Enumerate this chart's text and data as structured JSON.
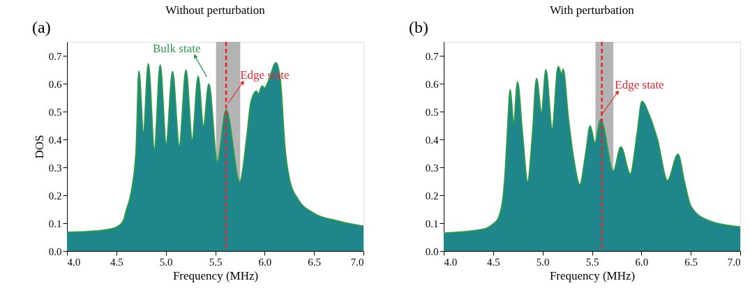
{
  "chart_data": [
    {
      "type": "area",
      "title": "Without perturbation",
      "xlabel": "Frequency (MHz)",
      "ylabel": "DOS",
      "x": [
        4.0,
        4.3,
        4.4,
        4.5,
        4.57,
        4.6,
        4.65,
        4.7,
        4.728,
        4.773,
        4.823,
        4.884,
        4.943,
        5.004,
        5.068,
        5.136,
        5.204,
        5.267,
        5.327,
        5.381,
        5.435,
        5.521,
        5.61,
        5.748,
        5.82,
        5.86,
        5.917,
        5.935,
        5.975,
        6.0,
        6.036,
        6.115,
        6.16,
        6.205,
        6.25,
        6.34,
        6.5,
        6.73,
        7.0
      ],
      "series": [
        {
          "color": "#1f878c",
          "values": [
            0.067,
            0.072,
            0.076,
            0.085,
            0.108,
            0.146,
            0.21,
            0.365,
            0.645,
            0.425,
            0.671,
            0.365,
            0.667,
            0.384,
            0.643,
            0.376,
            0.649,
            0.399,
            0.626,
            0.448,
            0.599,
            0.32,
            0.505,
            0.248,
            0.41,
            0.531,
            0.573,
            0.562,
            0.592,
            0.584,
            0.607,
            0.675,
            0.607,
            0.373,
            0.259,
            0.184,
            0.135,
            0.108,
            0.089
          ]
        }
      ],
      "xlim": [
        4.0,
        7.0
      ],
      "ylim": [
        0,
        0.75
      ],
      "xticks": [
        {
          "value": 4.0,
          "label": "4.0"
        },
        4.5,
        {
          "value": 5.0,
          "label": "5.0"
        },
        5.5,
        {
          "value": 6.0,
          "label": "6.0"
        },
        6.5,
        {
          "value": 7.0,
          "label": "7.0"
        }
      ],
      "yticks": [
        {
          "value": 0,
          "label": "0.0"
        },
        0.1,
        0.2,
        0.3,
        0.4,
        0.5,
        0.6,
        0.7
      ],
      "bands": [
        {
          "axis": "x",
          "from": 5.508,
          "to": 5.753,
          "color": "#b3b3b3"
        }
      ],
      "ref_lines": [
        {
          "axis": "x",
          "value": 5.61,
          "color": "#e8262c",
          "line_style": "dashed"
        }
      ],
      "annotations": [
        "(a)",
        {
          "text": "Bulk state",
          "x": 5.435,
          "y": 0.599
        },
        {
          "text": "Edge state",
          "x": 5.61,
          "y": 0.505
        }
      ]
    },
    {
      "type": "area",
      "title": "With perturbation",
      "xlabel": "Frequency (MHz)",
      "x": [
        4.0,
        4.4,
        4.5,
        4.55,
        4.6,
        4.63,
        4.65,
        4.673,
        4.707,
        4.747,
        4.797,
        4.849,
        4.898,
        4.939,
        4.989,
        5.034,
        5.097,
        5.158,
        5.192,
        5.208,
        5.26,
        5.316,
        5.377,
        5.44,
        5.481,
        5.53,
        5.587,
        5.716,
        5.792,
        5.887,
        5.959,
        6.005,
        6.072,
        6.14,
        6.16,
        6.264,
        6.37,
        6.433,
        6.5,
        6.66,
        7.0
      ],
      "series": [
        {
          "color": "#1f878c",
          "values": [
            0.064,
            0.078,
            0.097,
            0.116,
            0.19,
            0.328,
            0.464,
            0.579,
            0.456,
            0.606,
            0.419,
            0.248,
            0.419,
            0.619,
            0.496,
            0.65,
            0.438,
            0.662,
            0.634,
            0.652,
            0.479,
            0.328,
            0.238,
            0.358,
            0.449,
            0.388,
            0.472,
            0.286,
            0.373,
            0.276,
            0.426,
            0.536,
            0.494,
            0.426,
            0.403,
            0.252,
            0.347,
            0.252,
            0.161,
            0.112,
            0.086
          ]
        }
      ],
      "xlim": [
        4.0,
        7.0
      ],
      "ylim": [
        0,
        0.75
      ],
      "xticks": [
        {
          "value": 4.0,
          "label": "4.0"
        },
        4.5,
        {
          "value": 5.0,
          "label": "5.0"
        },
        5.5,
        {
          "value": 6.0,
          "label": "6.0"
        },
        6.5,
        {
          "value": 7.0,
          "label": "7.0"
        }
      ],
      "yticks": [
        {
          "value": 0,
          "label": "0.0"
        },
        0.1,
        0.2,
        0.3,
        0.4,
        0.5,
        0.6,
        0.7
      ],
      "bands": [
        {
          "axis": "x",
          "from": 5.535,
          "to": 5.716,
          "color": "#b3b3b3"
        }
      ],
      "ref_lines": [
        {
          "axis": "x",
          "value": 5.6,
          "color": "#e8262c",
          "line_style": "dashed"
        }
      ],
      "annotations": [
        "(b)",
        {
          "text": "Edge state",
          "x": 5.59,
          "y": 0.47
        }
      ]
    }
  ]
}
